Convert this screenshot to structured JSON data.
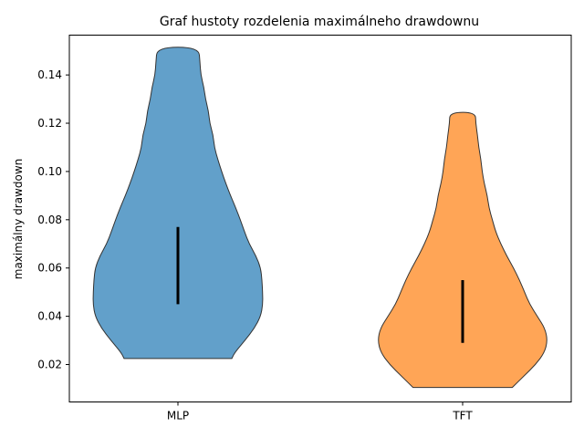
{
  "chart_data": {
    "type": "violin",
    "title": "Graf hustoty rozdelenia maximálneho drawdownu",
    "xlabel": "",
    "ylabel": "maximálny drawdown",
    "ylim": [
      0.0045,
      0.1565
    ],
    "yticks": [
      0.02,
      0.04,
      0.06,
      0.08,
      0.1,
      0.12,
      0.14
    ],
    "ytick_labels": [
      "0.02",
      "0.04",
      "0.06",
      "0.08",
      "0.10",
      "0.12",
      "0.14"
    ],
    "categories": [
      "MLP",
      "TFT"
    ],
    "grid": false,
    "series": [
      {
        "category": "MLP",
        "color": "#1f77b4",
        "min": 0.0225,
        "max": 0.1515,
        "q1": 0.045,
        "q3": 0.077,
        "density": [
          [
            0.0225,
            0.27
          ],
          [
            0.025,
            0.34
          ],
          [
            0.03,
            0.58
          ],
          [
            0.035,
            0.8
          ],
          [
            0.04,
            0.95
          ],
          [
            0.045,
            1.0
          ],
          [
            0.05,
            0.995
          ],
          [
            0.055,
            0.98
          ],
          [
            0.06,
            0.95
          ],
          [
            0.065,
            0.84
          ],
          [
            0.07,
            0.68
          ],
          [
            0.075,
            0.57
          ],
          [
            0.08,
            0.47
          ],
          [
            0.085,
            0.36
          ],
          [
            0.09,
            0.24
          ],
          [
            0.095,
            0.13
          ],
          [
            0.1,
            0.03
          ],
          [
            0.105,
            -0.06
          ],
          [
            0.11,
            -0.14
          ],
          [
            0.115,
            -0.17
          ],
          [
            0.12,
            -0.25
          ],
          [
            0.125,
            -0.28
          ],
          [
            0.13,
            -0.35
          ],
          [
            0.135,
            -0.39
          ],
          [
            0.14,
            -0.46
          ],
          [
            0.145,
            -0.48
          ],
          [
            0.1515,
            -0.51
          ]
        ]
      },
      {
        "category": "TFT",
        "color": "#ff7f0e",
        "min": 0.0105,
        "max": 0.1245,
        "q1": 0.029,
        "q3": 0.055,
        "density": [
          [
            0.0105,
            0.17
          ],
          [
            0.015,
            0.43
          ],
          [
            0.02,
            0.72
          ],
          [
            0.025,
            0.93
          ],
          [
            0.03,
            1.0
          ],
          [
            0.035,
            0.94
          ],
          [
            0.04,
            0.76
          ],
          [
            0.045,
            0.58
          ],
          [
            0.05,
            0.46
          ],
          [
            0.055,
            0.34
          ],
          [
            0.06,
            0.2
          ],
          [
            0.065,
            0.04
          ],
          [
            0.07,
            -0.1
          ],
          [
            0.075,
            -0.22
          ],
          [
            0.08,
            -0.3
          ],
          [
            0.085,
            -0.38
          ],
          [
            0.09,
            -0.42
          ],
          [
            0.095,
            -0.49
          ],
          [
            0.1,
            -0.54
          ],
          [
            0.105,
            -0.57
          ],
          [
            0.11,
            -0.62
          ],
          [
            0.115,
            -0.65
          ],
          [
            0.12,
            -0.69
          ],
          [
            0.1245,
            -0.7
          ]
        ]
      }
    ]
  }
}
